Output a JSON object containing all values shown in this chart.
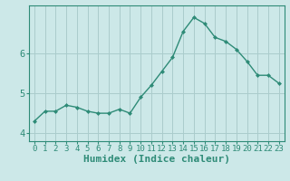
{
  "x": [
    0,
    1,
    2,
    3,
    4,
    5,
    6,
    7,
    8,
    9,
    10,
    11,
    12,
    13,
    14,
    15,
    16,
    17,
    18,
    19,
    20,
    21,
    22,
    23
  ],
  "y": [
    4.3,
    4.55,
    4.55,
    4.7,
    4.65,
    4.55,
    4.5,
    4.5,
    4.6,
    4.5,
    4.9,
    5.2,
    5.55,
    5.9,
    6.55,
    6.9,
    6.75,
    6.4,
    6.3,
    6.1,
    5.8,
    5.45,
    5.45,
    5.25
  ],
  "line_color": "#2e8b77",
  "marker_color": "#2e8b77",
  "bg_color": "#cce8e8",
  "grid_color": "#aacccc",
  "xlabel": "Humidex (Indice chaleur)",
  "ylim": [
    3.8,
    7.2
  ],
  "xlim": [
    -0.5,
    23.5
  ],
  "yticks": [
    4,
    5,
    6
  ],
  "xticks": [
    0,
    1,
    2,
    3,
    4,
    5,
    6,
    7,
    8,
    9,
    10,
    11,
    12,
    13,
    14,
    15,
    16,
    17,
    18,
    19,
    20,
    21,
    22,
    23
  ],
  "tick_fontsize": 6.5,
  "xlabel_fontsize": 8
}
